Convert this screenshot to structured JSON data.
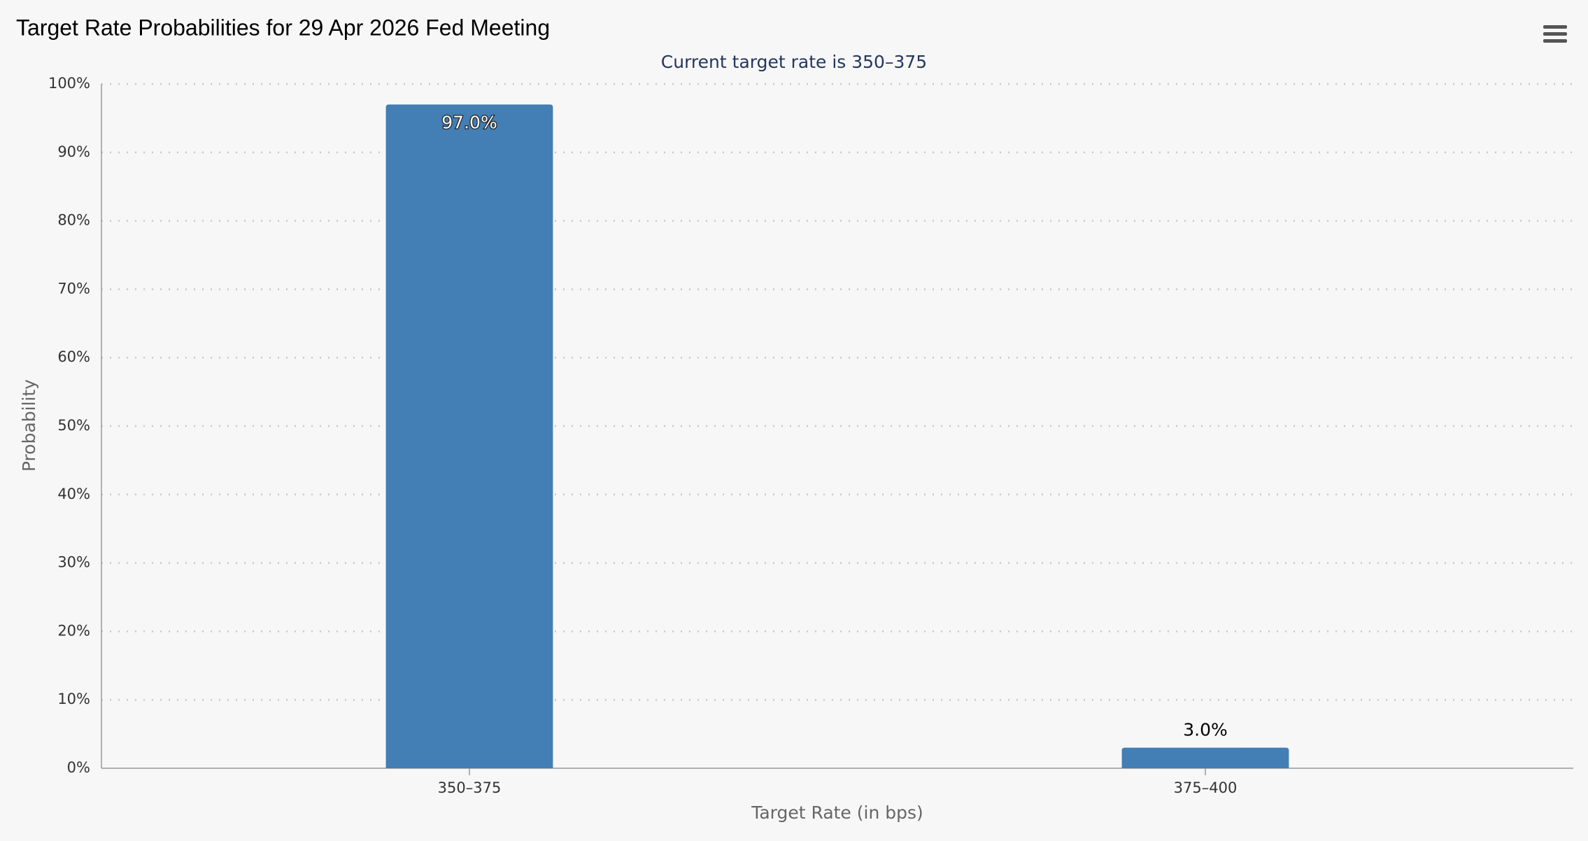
{
  "chart_data": {
    "type": "bar",
    "title": "Target Rate Probabilities for 29 Apr 2026 Fed Meeting",
    "subtitle": "Current target rate is 350–375",
    "x_label": "Target Rate (in bps)",
    "y_label": "Probability",
    "categories": [
      "350–375",
      "375–400"
    ],
    "values": [
      97.0,
      3.0
    ],
    "value_labels": [
      "97.0%",
      "3.0%"
    ],
    "color": "#437eb4",
    "ylim": [
      0,
      100
    ],
    "yticks": [
      {
        "value": 0,
        "label": "0%"
      },
      {
        "value": 10,
        "label": "10%"
      },
      {
        "value": 20,
        "label": "20%"
      },
      {
        "value": 30,
        "label": "30%"
      },
      {
        "value": 40,
        "label": "40%"
      },
      {
        "value": 50,
        "label": "50%"
      },
      {
        "value": 60,
        "label": "60%"
      },
      {
        "value": 70,
        "label": "70%"
      },
      {
        "value": 80,
        "label": "80%"
      },
      {
        "value": 90,
        "label": "90%"
      },
      {
        "value": 100,
        "label": "100%"
      }
    ],
    "grid": true
  }
}
